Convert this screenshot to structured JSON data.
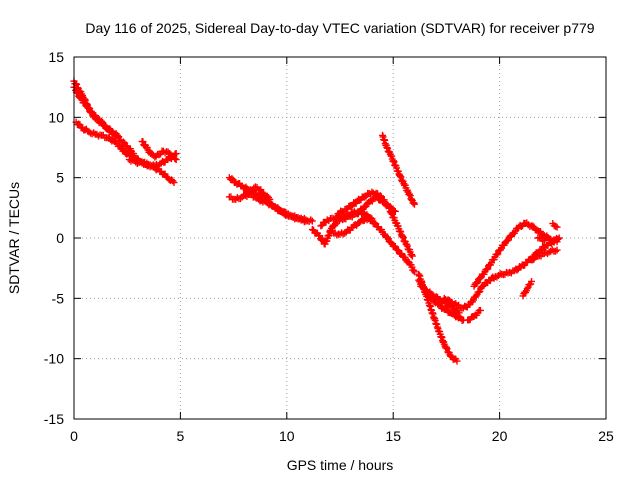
{
  "chart_data": {
    "type": "scatter",
    "title": "Day 116 of 2025, Sidereal Day-to-day VTEC variation (SDTVAR) for receiver p779",
    "xlabel": "GPS time / hours",
    "ylabel": "SDTVAR / TECUs",
    "xlim": [
      0,
      25
    ],
    "ylim": [
      -15,
      15
    ],
    "xticks": [
      0,
      5,
      10,
      15,
      20,
      25
    ],
    "yticks": [
      -15,
      -10,
      -5,
      0,
      5,
      10,
      15
    ],
    "grid": true,
    "legend": "none",
    "marker": "plus",
    "color": "#ff0000",
    "tracks": [
      {
        "x": [
          0.0,
          0.2,
          0.4,
          0.6,
          0.8,
          1.0,
          1.3,
          1.6,
          1.9,
          2.2,
          2.5,
          2.8
        ],
        "y": [
          13.0,
          12.4,
          11.8,
          11.1,
          10.4,
          9.9,
          9.5,
          9.0,
          8.6,
          8.1,
          7.6,
          7.0
        ]
      },
      {
        "x": [
          0.0,
          0.3,
          0.6,
          0.9,
          1.2,
          1.5,
          1.8,
          2.1
        ],
        "y": [
          12.5,
          11.6,
          10.9,
          10.2,
          9.8,
          9.2,
          8.8,
          8.4
        ]
      },
      {
        "x": [
          0.1,
          0.4,
          0.7,
          1.0,
          1.3,
          1.6,
          1.9,
          2.2,
          2.5
        ],
        "y": [
          9.6,
          9.1,
          8.8,
          8.6,
          8.5,
          8.3,
          8.0,
          7.5,
          7.0
        ]
      },
      {
        "x": [
          2.3,
          2.6,
          2.9,
          3.2,
          3.5,
          3.8,
          4.1,
          4.4,
          4.7
        ],
        "y": [
          7.2,
          6.9,
          6.6,
          6.3,
          6.0,
          5.8,
          5.5,
          5.0,
          4.6
        ]
      },
      {
        "x": [
          2.6,
          2.9,
          3.2,
          3.5,
          3.8,
          4.1,
          4.4,
          4.7,
          4.8
        ],
        "y": [
          6.5,
          6.3,
          6.2,
          6.1,
          6.0,
          6.2,
          6.5,
          6.8,
          7.0
        ]
      },
      {
        "x": [
          3.2,
          3.4,
          3.6,
          3.8,
          4.0,
          4.2,
          4.5,
          4.8
        ],
        "y": [
          8.0,
          7.5,
          7.0,
          6.7,
          6.9,
          7.2,
          7.0,
          6.5
        ]
      },
      {
        "x": [
          7.3,
          7.6,
          7.9,
          8.2,
          8.5,
          8.8,
          9.1,
          9.4,
          9.7,
          10.0,
          10.3,
          10.6,
          10.9,
          11.2
        ],
        "y": [
          5.0,
          4.6,
          4.3,
          4.0,
          3.7,
          3.4,
          3.0,
          2.6,
          2.2,
          1.9,
          1.7,
          1.6,
          1.5,
          1.4
        ]
      },
      {
        "x": [
          7.3,
          7.6,
          7.9,
          8.2,
          8.5,
          8.8,
          9.1,
          9.4,
          9.7,
          10.0,
          10.3,
          10.6,
          10.9
        ],
        "y": [
          3.4,
          3.2,
          3.4,
          3.6,
          3.4,
          3.1,
          2.9,
          2.6,
          2.3,
          2.0,
          1.8,
          1.6,
          1.4
        ]
      },
      {
        "x": [
          8.0,
          8.3,
          8.6,
          8.9,
          9.2
        ],
        "y": [
          3.6,
          4.0,
          4.2,
          3.7,
          3.2
        ]
      },
      {
        "x": [
          11.2,
          11.5,
          11.8,
          12.1,
          12.4,
          12.7,
          13.0,
          13.3,
          13.6,
          13.9,
          14.2,
          14.5,
          14.8,
          15.1
        ],
        "y": [
          0.7,
          0.2,
          -0.5,
          0.8,
          1.4,
          1.6,
          1.8,
          2.0,
          2.5,
          3.0,
          3.4,
          3.0,
          2.6,
          2.2
        ]
      },
      {
        "x": [
          11.6,
          11.9,
          12.2,
          12.5,
          12.8,
          13.1,
          13.4,
          13.7,
          14.0
        ],
        "y": [
          1.0,
          1.5,
          1.6,
          1.8,
          1.9,
          2.1,
          2.2,
          1.9,
          1.6
        ]
      },
      {
        "x": [
          12.2,
          12.5,
          12.8,
          13.1,
          13.4,
          13.7,
          14.0,
          14.3,
          14.6,
          14.9,
          15.2,
          15.5,
          15.8,
          16.0
        ],
        "y": [
          0.4,
          0.3,
          0.5,
          0.9,
          1.3,
          1.6,
          1.4,
          0.9,
          0.3,
          -0.4,
          -1.0,
          -1.6,
          -2.2,
          -2.8
        ]
      },
      {
        "x": [
          12.4,
          12.8,
          13.2,
          13.6,
          14.0,
          14.4,
          14.8,
          15.2,
          15.6,
          15.9
        ],
        "y": [
          2.0,
          2.4,
          2.9,
          3.4,
          3.8,
          3.5,
          2.5,
          1.0,
          -0.5,
          -1.5
        ]
      },
      {
        "x": [
          14.5,
          14.7,
          14.9,
          15.1,
          15.3,
          15.5,
          15.7,
          15.9,
          16.0
        ],
        "y": [
          8.5,
          7.5,
          6.8,
          6.0,
          5.2,
          4.5,
          3.8,
          3.1,
          2.8
        ]
      },
      {
        "x": [
          16.2,
          16.5,
          16.8,
          17.1,
          17.4,
          17.7,
          18.0
        ],
        "y": [
          -3.0,
          -4.5,
          -6.0,
          -7.5,
          -8.8,
          -9.8,
          -10.2
        ]
      },
      {
        "x": [
          16.2,
          16.5,
          16.8,
          17.1,
          17.4,
          17.7,
          18.0,
          18.3
        ],
        "y": [
          -3.5,
          -4.3,
          -5.0,
          -5.5,
          -5.9,
          -6.2,
          -6.5,
          -6.8
        ]
      },
      {
        "x": [
          16.3,
          16.6,
          16.9,
          17.2,
          17.5,
          17.8,
          18.1
        ],
        "y": [
          -4.0,
          -4.4,
          -4.8,
          -5.1,
          -5.4,
          -5.8,
          -6.2
        ]
      },
      {
        "x": [
          17.4,
          17.7,
          18.0,
          18.3,
          18.6,
          18.9,
          19.2,
          19.5,
          19.8,
          20.1,
          20.4,
          20.7,
          21.0,
          21.3,
          21.6,
          21.9,
          22.2,
          22.5,
          22.8
        ],
        "y": [
          -5.0,
          -5.3,
          -5.6,
          -5.8,
          -5.5,
          -4.8,
          -4.0,
          -3.5,
          -3.2,
          -3.0,
          -2.9,
          -2.7,
          -2.4,
          -2.0,
          -1.5,
          -1.0,
          -0.6,
          -0.3,
          0.0
        ]
      },
      {
        "x": [
          18.8,
          19.1,
          19.4,
          19.7,
          20.0,
          20.3,
          20.6,
          20.9,
          21.2,
          21.5,
          21.8,
          22.1,
          22.4,
          22.7
        ],
        "y": [
          -4.0,
          -3.3,
          -2.6,
          -1.8,
          -1.0,
          -0.3,
          0.3,
          0.9,
          1.2,
          1.0,
          0.6,
          0.2,
          -0.1,
          -0.3
        ]
      },
      {
        "x": [
          18.5,
          18.8,
          19.1
        ],
        "y": [
          -6.8,
          -6.5,
          -6.0
        ]
      },
      {
        "x": [
          21.1,
          21.3,
          21.5
        ],
        "y": [
          -4.8,
          -4.2,
          -3.6
        ]
      },
      {
        "x": [
          21.5,
          21.8,
          22.1,
          22.4,
          22.7
        ],
        "y": [
          -1.8,
          -1.5,
          -1.3,
          -1.1,
          -1.0
        ]
      },
      {
        "x": [
          21.8,
          22.1
        ],
        "y": [
          0.0,
          -0.2
        ]
      },
      {
        "x": [
          22.5,
          22.7
        ],
        "y": [
          1.2,
          0.9
        ]
      }
    ]
  }
}
